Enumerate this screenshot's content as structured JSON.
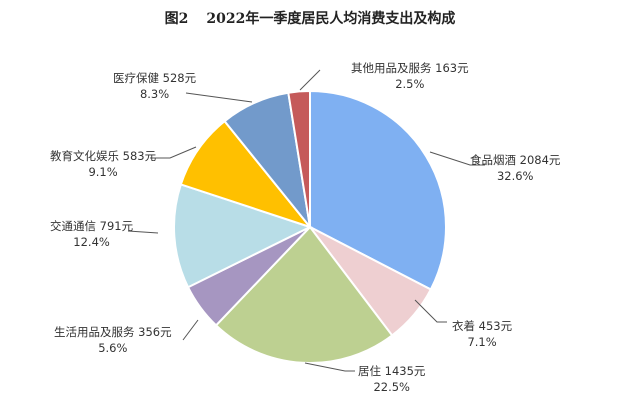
{
  "title": {
    "figure_no": "图2",
    "text": "2022年一季度居民人均消费支出及构成"
  },
  "chart_data": {
    "type": "pie",
    "title": "2022年一季度居民人均消费支出及构成",
    "unit": "元",
    "start_angle_deg": 0,
    "direction": "clockwise",
    "slices": [
      {
        "label": "食品烟酒",
        "value": 2084,
        "percent": 32.6,
        "color": "#7FB0F2"
      },
      {
        "label": "衣着",
        "value": 453,
        "percent": 7.1,
        "color": "#EECFD1"
      },
      {
        "label": "居住",
        "value": 1435,
        "percent": 22.5,
        "color": "#BDD091"
      },
      {
        "label": "生活用品及服务",
        "value": 356,
        "percent": 5.6,
        "color": "#A696C1"
      },
      {
        "label": "交通通信",
        "value": 791,
        "percent": 12.4,
        "color": "#B8DDE7"
      },
      {
        "label": "教育文化娱乐",
        "value": 583,
        "percent": 9.1,
        "color": "#FFC000"
      },
      {
        "label": "医疗保健",
        "value": 528,
        "percent": 8.3,
        "color": "#729ACB"
      },
      {
        "label": "其他用品及服务",
        "value": 163,
        "percent": 2.5,
        "color": "#C55A5A"
      }
    ]
  },
  "labels": [
    {
      "text": "食品烟酒 2084元",
      "pct": "32.6%"
    },
    {
      "text": "衣着 453元",
      "pct": "7.1%"
    },
    {
      "text": "居住 1435元",
      "pct": "22.5%"
    },
    {
      "text": "生活用品及服务 356元",
      "pct": "5.6%"
    },
    {
      "text": "交通通信 791元",
      "pct": "12.4%"
    },
    {
      "text": "教育文化娱乐 583元",
      "pct": "9.1%"
    },
    {
      "text": "医疗保健 528元",
      "pct": "8.3%"
    },
    {
      "text": "其他用品及服务 163元",
      "pct": "2.5%"
    }
  ]
}
